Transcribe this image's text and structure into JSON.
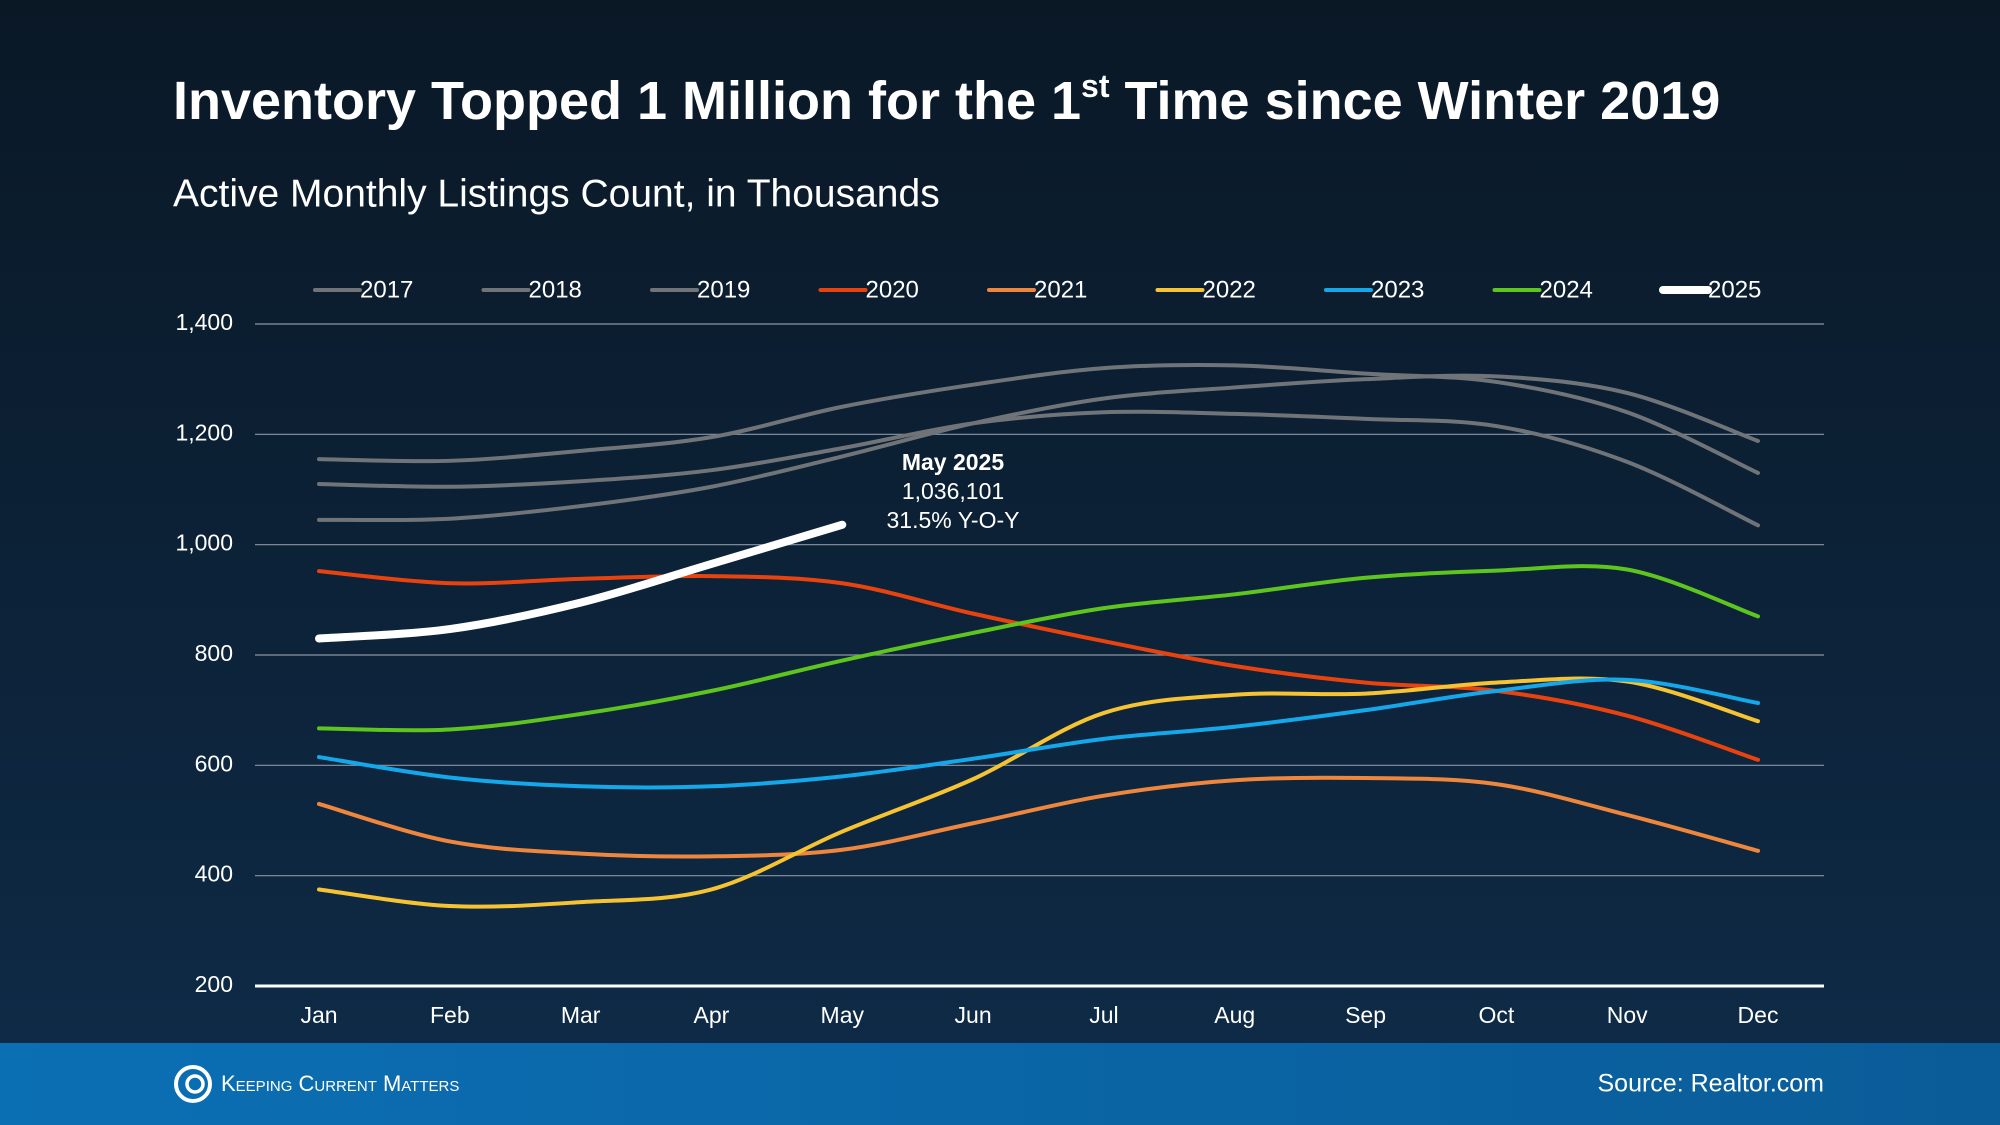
{
  "chart_data": {
    "type": "line",
    "title": [
      "Inventory Topped 1 Million for the 1",
      "st",
      " Time since Winter 2019"
    ],
    "subtitle": "Active Monthly Listings Count, in Thousands",
    "categories": [
      "Jan",
      "Feb",
      "Mar",
      "Apr",
      "May",
      "Jun",
      "Jul",
      "Aug",
      "Sep",
      "Oct",
      "Nov",
      "Dec"
    ],
    "ylim": [
      200,
      1400
    ],
    "yticks": [
      200,
      400,
      600,
      800,
      {
        "value": 1000,
        "label": "1,000"
      },
      {
        "value": 1200,
        "label": "1,200"
      },
      {
        "value": 1400,
        "label": "1,400"
      }
    ],
    "grid": true,
    "legend": "top",
    "series": [
      {
        "name": "2017",
        "color": "#707478",
        "values": [
          1155,
          1152,
          1170,
          1195,
          1250,
          1290,
          1320,
          1325,
          1310,
          1295,
          1240,
          1130
        ]
      },
      {
        "name": "2018",
        "color": "#707478",
        "values": [
          1045,
          1047,
          1070,
          1105,
          1160,
          1220,
          1265,
          1285,
          1300,
          1305,
          1275,
          1188
        ]
      },
      {
        "name": "2019",
        "color": "#707478",
        "values": [
          1110,
          1105,
          1115,
          1135,
          1175,
          1220,
          1240,
          1237,
          1228,
          1215,
          1150,
          1035
        ]
      },
      {
        "name": "2020",
        "color": "#e8430f",
        "values": [
          952,
          930,
          938,
          943,
          930,
          875,
          825,
          780,
          750,
          735,
          690,
          610
        ]
      },
      {
        "name": "2021",
        "color": "#ee873d",
        "values": [
          530,
          462,
          440,
          435,
          447,
          495,
          545,
          573,
          577,
          566,
          510,
          445
        ]
      },
      {
        "name": "2022",
        "color": "#f6c333",
        "values": [
          375,
          345,
          352,
          375,
          480,
          575,
          695,
          728,
          730,
          750,
          752,
          680
        ]
      },
      {
        "name": "2023",
        "color": "#14a8ea",
        "values": [
          615,
          578,
          562,
          562,
          580,
          612,
          648,
          670,
          700,
          735,
          755,
          713
        ]
      },
      {
        "name": "2024",
        "color": "#5ec41e",
        "values": [
          667,
          665,
          693,
          735,
          790,
          840,
          885,
          910,
          940,
          953,
          955,
          870
        ]
      },
      {
        "name": "2025",
        "color": "#ffffff",
        "values": [
          830,
          847,
          895,
          965,
          1036.101,
          null,
          null,
          null,
          null,
          null,
          null,
          null
        ]
      }
    ],
    "annotation": {
      "title": "May 2025",
      "value": "1,036,101",
      "change": "31.5% Y-O-Y"
    },
    "brand": "Keeping Current Matters",
    "source": "Source: Realtor.com"
  }
}
